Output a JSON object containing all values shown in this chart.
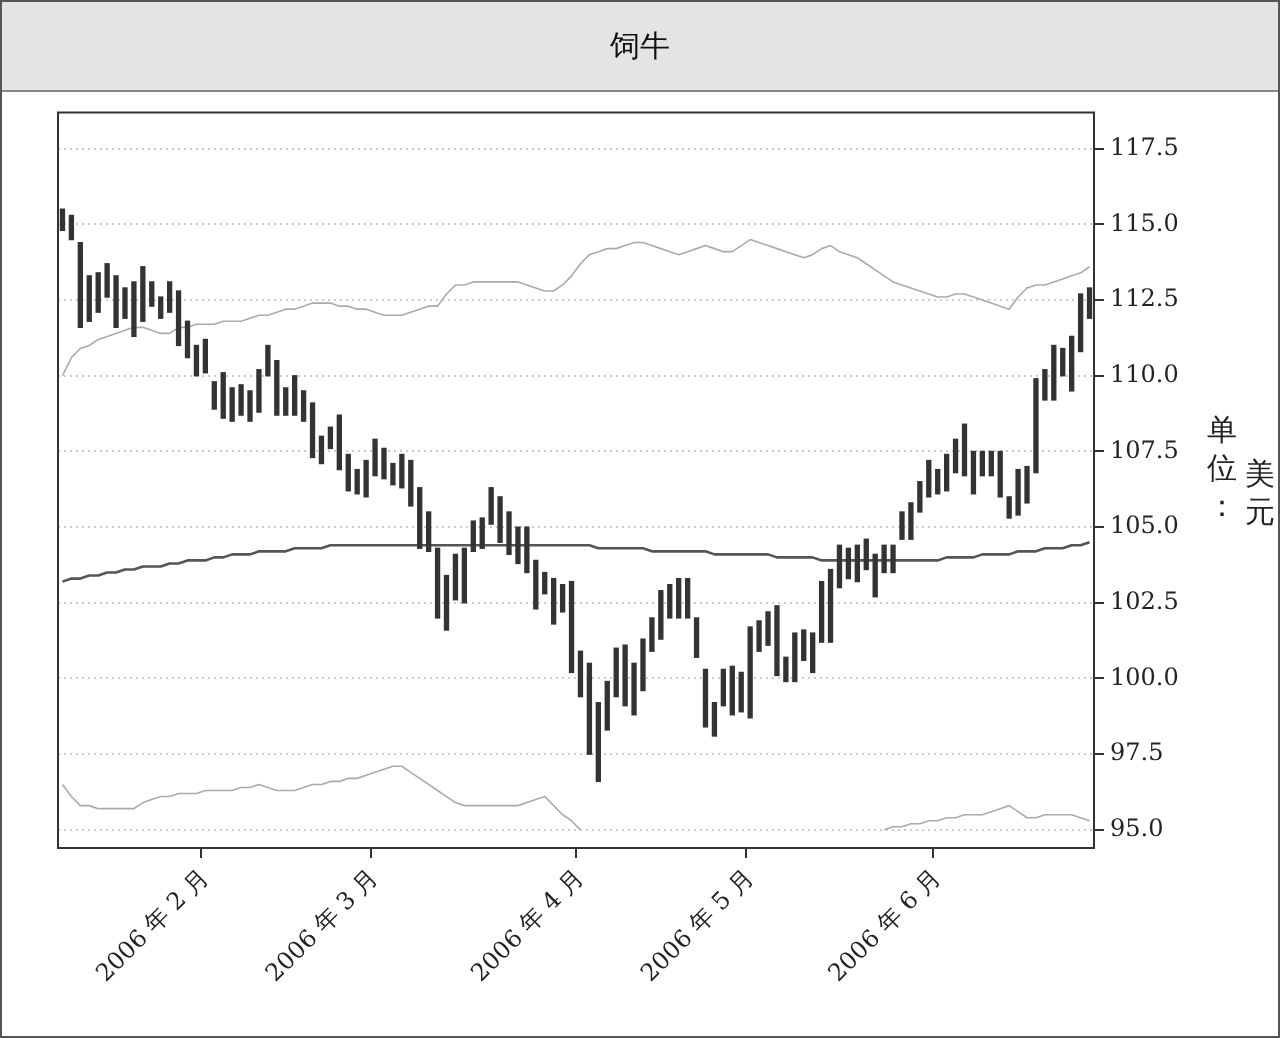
{
  "chart_data": {
    "type": "bar",
    "title": "饲牛",
    "ylabel": "单位：美元",
    "categories": [
      null,
      null,
      null,
      null,
      null,
      null,
      null,
      null,
      null,
      null,
      null,
      null,
      null,
      null,
      null,
      null,
      "2006 年 2 月",
      null,
      null,
      null,
      null,
      null,
      null,
      null,
      null,
      null,
      null,
      null,
      null,
      null,
      null,
      null,
      null,
      null,
      null,
      "2006 年 3 月",
      null,
      null,
      null,
      null,
      null,
      null,
      null,
      null,
      null,
      null,
      null,
      null,
      null,
      null,
      null,
      null,
      null,
      null,
      null,
      null,
      null,
      null,
      "2006 年 4 月",
      null,
      null,
      null,
      null,
      null,
      null,
      null,
      null,
      null,
      null,
      null,
      null,
      null,
      null,
      null,
      null,
      null,
      null,
      "2006 年 5 月",
      null,
      null,
      null,
      null,
      null,
      null,
      null,
      null,
      null,
      null,
      null,
      null,
      null,
      null,
      null,
      null,
      null,
      null,
      null,
      null,
      "2006 年 6 月",
      null,
      null,
      null,
      null,
      null,
      null,
      null,
      null,
      null,
      null,
      null,
      null,
      null,
      null,
      null,
      null,
      null
    ],
    "series": [
      {
        "color": "#333333",
        "base": [
          114.8,
          114.5,
          111.6,
          111.8,
          112.1,
          112.6,
          111.6,
          111.9,
          111.3,
          111.8,
          112.3,
          111.9,
          112.1,
          111.0,
          110.6,
          110.0,
          110.1,
          108.9,
          108.6,
          108.5,
          108.7,
          108.5,
          108.8,
          110.0,
          108.7,
          108.7,
          108.7,
          108.5,
          107.3,
          107.1,
          107.6,
          106.9,
          106.2,
          106.1,
          106.0,
          106.7,
          106.6,
          106.4,
          106.3,
          105.7,
          104.3,
          104.2,
          102.0,
          101.6,
          102.6,
          102.5,
          104.2,
          104.3,
          105.1,
          104.5,
          104.1,
          103.8,
          103.5,
          102.3,
          102.8,
          101.8,
          102.2,
          100.2,
          99.4,
          97.5,
          96.6,
          98.3,
          99.4,
          99.1,
          98.8,
          99.6,
          100.9,
          101.3,
          102.0,
          102.0,
          102.0,
          100.7,
          98.4,
          98.1,
          99.1,
          98.8,
          98.9,
          98.7,
          100.9,
          101.1,
          100.1,
          99.9,
          99.9,
          100.6,
          100.2,
          101.2,
          101.2,
          103.0,
          103.3,
          103.2,
          103.6,
          102.7,
          103.5,
          103.5,
          104.6,
          104.6,
          105.5,
          106.0,
          106.1,
          106.2,
          106.8,
          106.7,
          106.1,
          106.7,
          106.7,
          106.0,
          105.3,
          105.4,
          105.8,
          106.8,
          109.2,
          109.2,
          110.0,
          109.5,
          110.8,
          111.9
        ],
        "values": [
          0.7,
          0.8,
          2.8,
          1.5,
          1.3,
          1.1,
          1.7,
          1.0,
          1.8,
          1.8,
          0.8,
          0.7,
          1.0,
          1.8,
          1.2,
          1.0,
          1.1,
          0.9,
          1.5,
          1.1,
          1.0,
          1.0,
          1.4,
          1.0,
          1.8,
          0.9,
          1.3,
          1.0,
          1.8,
          0.9,
          0.7,
          1.8,
          1.2,
          0.8,
          1.2,
          1.2,
          1.0,
          0.7,
          1.1,
          1.5,
          2.0,
          1.3,
          2.3,
          1.8,
          1.5,
          1.8,
          1.0,
          1.0,
          1.2,
          1.5,
          1.4,
          1.2,
          1.5,
          1.6,
          0.7,
          1.5,
          0.9,
          3.0,
          1.5,
          3.0,
          2.6,
          1.6,
          1.6,
          2.0,
          1.7,
          1.7,
          1.1,
          1.6,
          1.1,
          1.3,
          1.3,
          1.3,
          1.9,
          1.1,
          1.2,
          1.6,
          1.3,
          3.0,
          1.0,
          1.1,
          2.3,
          0.8,
          1.6,
          1.0,
          1.3,
          2.0,
          2.4,
          1.4,
          1.0,
          1.2,
          1.0,
          1.4,
          0.9,
          0.9,
          0.9,
          1.2,
          1.0,
          1.2,
          0.8,
          1.2,
          1.1,
          1.7,
          1.4,
          0.8,
          0.8,
          1.5,
          0.7,
          1.5,
          1.2,
          3.1,
          1.0,
          1.8,
          0.9,
          1.8,
          1.9,
          1.0
        ]
      },
      {
        "type": "line",
        "color": "#555555",
        "values": [
          103.2,
          103.3,
          103.3,
          103.4,
          103.4,
          103.5,
          103.5,
          103.6,
          103.6,
          103.7,
          103.7,
          103.7,
          103.8,
          103.8,
          103.9,
          103.9,
          103.9,
          104.0,
          104.0,
          104.1,
          104.1,
          104.1,
          104.2,
          104.2,
          104.2,
          104.2,
          104.3,
          104.3,
          104.3,
          104.3,
          104.4,
          104.4,
          104.4,
          104.4,
          104.4,
          104.4,
          104.4,
          104.4,
          104.4,
          104.4,
          104.4,
          104.4,
          104.4,
          104.4,
          104.4,
          104.4,
          104.4,
          104.4,
          104.4,
          104.4,
          104.4,
          104.4,
          104.4,
          104.4,
          104.4,
          104.4,
          104.4,
          104.4,
          104.4,
          104.4,
          104.3,
          104.3,
          104.3,
          104.3,
          104.3,
          104.3,
          104.2,
          104.2,
          104.2,
          104.2,
          104.2,
          104.2,
          104.2,
          104.1,
          104.1,
          104.1,
          104.1,
          104.1,
          104.1,
          104.1,
          104.0,
          104.0,
          104.0,
          104.0,
          104.0,
          103.9,
          103.9,
          103.9,
          103.9,
          103.9,
          103.9,
          103.9,
          103.9,
          103.9,
          103.9,
          103.9,
          103.9,
          103.9,
          103.9,
          104.0,
          104.0,
          104.0,
          104.0,
          104.1,
          104.1,
          104.1,
          104.1,
          104.2,
          104.2,
          104.2,
          104.3,
          104.3,
          104.3,
          104.4,
          104.4,
          104.5
        ]
      },
      {
        "type": "line",
        "color": "#aaaaaa",
        "values": [
          110.0,
          110.6,
          110.9,
          111.0,
          111.2,
          111.3,
          111.4,
          111.5,
          111.6,
          111.6,
          111.5,
          111.4,
          111.4,
          111.6,
          111.6,
          111.7,
          111.7,
          111.7,
          111.8,
          111.8,
          111.8,
          111.9,
          112.0,
          112.0,
          112.1,
          112.2,
          112.2,
          112.3,
          112.4,
          112.4,
          112.4,
          112.3,
          112.3,
          112.2,
          112.2,
          112.1,
          112.0,
          112.0,
          112.0,
          112.1,
          112.2,
          112.3,
          112.3,
          112.7,
          113.0,
          113.0,
          113.1,
          113.1,
          113.1,
          113.1,
          113.1,
          113.1,
          113.0,
          112.9,
          112.8,
          112.8,
          113.0,
          113.3,
          113.7,
          114.0,
          114.1,
          114.2,
          114.2,
          114.3,
          114.4,
          114.4,
          114.3,
          114.2,
          114.1,
          114.0,
          114.1,
          114.2,
          114.3,
          114.2,
          114.1,
          114.1,
          114.3,
          114.5,
          114.4,
          114.3,
          114.2,
          114.1,
          114.0,
          113.9,
          114.0,
          114.2,
          114.3,
          114.1,
          114.0,
          113.9,
          113.7,
          113.5,
          113.3,
          113.1,
          113.0,
          112.9,
          112.8,
          112.7,
          112.6,
          112.6,
          112.7,
          112.7,
          112.6,
          112.5,
          112.4,
          112.3,
          112.2,
          112.6,
          112.9,
          113.0,
          113.0,
          113.1,
          113.2,
          113.3,
          113.4,
          113.6
        ]
      },
      {
        "type": "line",
        "color": "#aaaaaa",
        "values": [
          96.5,
          96.1,
          95.8,
          95.8,
          95.7,
          95.7,
          95.7,
          95.7,
          95.7,
          95.9,
          96.0,
          96.1,
          96.1,
          96.2,
          96.2,
          96.2,
          96.3,
          96.3,
          96.3,
          96.3,
          96.4,
          96.4,
          96.5,
          96.4,
          96.3,
          96.3,
          96.3,
          96.4,
          96.5,
          96.5,
          96.6,
          96.6,
          96.7,
          96.7,
          96.8,
          96.9,
          97.0,
          97.1,
          97.1,
          96.9,
          96.7,
          96.5,
          96.3,
          96.1,
          95.9,
          95.8,
          95.8,
          95.8,
          95.8,
          95.8,
          95.8,
          95.8,
          95.9,
          96.0,
          96.1,
          95.8,
          95.5,
          95.3,
          95.0,
          null,
          null,
          null,
          null,
          null,
          null,
          null,
          null,
          null,
          null,
          null,
          null,
          null,
          null,
          null,
          null,
          null,
          null,
          null,
          null,
          null,
          null,
          null,
          null,
          null,
          null,
          null,
          null,
          null,
          null,
          null,
          null,
          null,
          95.0,
          95.1,
          95.1,
          95.2,
          95.2,
          95.3,
          95.3,
          95.4,
          95.4,
          95.5,
          95.5,
          95.5,
          95.6,
          95.7,
          95.8,
          95.6,
          95.4,
          95.4,
          95.5,
          95.5,
          95.5,
          95.5,
          95.4,
          95.3
        ]
      }
    ],
    "ylim": [
      94.4,
      118.7
    ],
    "yticks": [
      {
        "value": 95,
        "label": "95.0"
      },
      {
        "value": 97.5,
        "label": "97.5"
      },
      {
        "value": 100,
        "label": "100.0"
      },
      {
        "value": 102.5,
        "label": "102.5"
      },
      {
        "value": 105,
        "label": "105.0"
      },
      {
        "value": 107.5,
        "label": "107.5"
      },
      {
        "value": 110,
        "label": "110.0"
      },
      {
        "value": 112.5,
        "label": "112.5"
      },
      {
        "value": 115,
        "label": "115.0"
      },
      {
        "value": 117.5,
        "label": "117.5"
      }
    ],
    "grid": "y",
    "legend": false,
    "marker": "none",
    "line_style": "solid"
  }
}
